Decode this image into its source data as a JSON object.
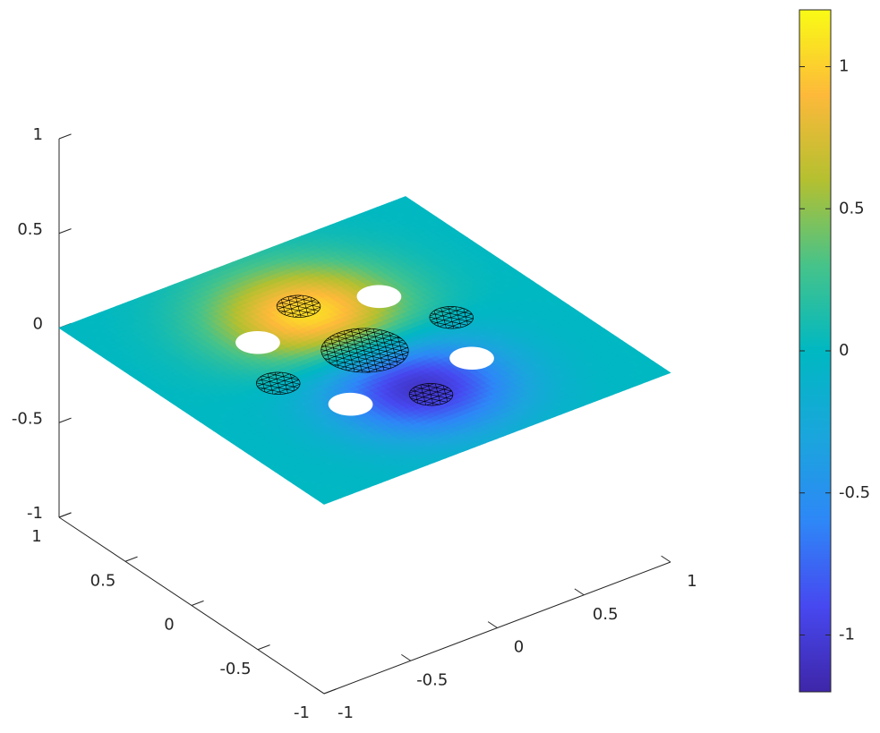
{
  "chart_data": {
    "type": "surface3d",
    "xlim": [
      -1,
      1
    ],
    "ylim": [
      -1,
      1
    ],
    "zlim": [
      -1,
      1
    ],
    "xticks": [
      -1,
      -0.5,
      0,
      0.5,
      1
    ],
    "yticks": [
      -1,
      -0.5,
      0,
      0.5,
      1
    ],
    "zticks": [
      -1,
      -0.5,
      0,
      0.5,
      1
    ],
    "colormap": [
      "#3e26a8",
      "#4748f0",
      "#2e87f7",
      "#1aa6dc",
      "#00b8c2",
      "#46c38a",
      "#b4c030",
      "#fdb93a",
      "#f9fb15"
    ],
    "colorbar": {
      "clim": [
        -1.2,
        1.2
      ],
      "ticks": [
        -1,
        -0.5,
        0,
        0.5,
        1
      ]
    },
    "surface": {
      "z": 0,
      "spread": 0.45,
      "peak": {
        "x": 0,
        "y": 0.4,
        "value": 1.1
      },
      "trough": {
        "x": 0,
        "y": -0.4,
        "value": -1.1
      }
    },
    "holes": [
      {
        "x": 0.35,
        "y": 0.35,
        "r": 0.1
      },
      {
        "x": 0.35,
        "y": -0.35,
        "r": 0.1
      },
      {
        "x": -0.35,
        "y": -0.35,
        "r": 0.1
      },
      {
        "x": -0.35,
        "y": 0.35,
        "r": 0.1
      }
    ],
    "inclusions": [
      {
        "x": 0,
        "y": 0,
        "r": 0.2
      },
      {
        "x": 0,
        "y": 0.5,
        "r": 0.1
      },
      {
        "x": 0.5,
        "y": 0,
        "r": 0.1
      },
      {
        "x": 0,
        "y": -0.5,
        "r": 0.1
      },
      {
        "x": -0.5,
        "y": 0,
        "r": 0.1
      }
    ],
    "mesh_color": "#000000"
  }
}
